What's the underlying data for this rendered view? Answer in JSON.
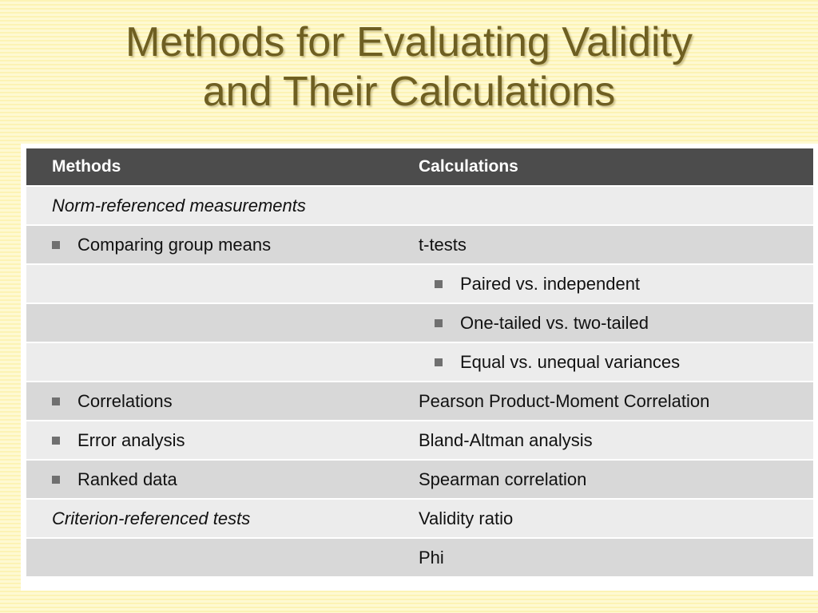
{
  "slide": {
    "title_line1": "Methods for Evaluating Validity",
    "title_line2": "and Their Calculations"
  },
  "table": {
    "headers": [
      "Methods",
      "Calculations"
    ],
    "rows": [
      {
        "method": "Norm-referenced measurements",
        "calculation": ""
      },
      {
        "method": "Comparing group means",
        "calculation": "t-tests"
      },
      {
        "method": "",
        "calculation": "Paired vs. independent"
      },
      {
        "method": "",
        "calculation": "One-tailed vs. two-tailed"
      },
      {
        "method": "",
        "calculation": "Equal vs. unequal variances"
      },
      {
        "method": "Correlations",
        "calculation": "Pearson Product-Moment Correlation"
      },
      {
        "method": "Error analysis",
        "calculation": "Bland-Altman analysis"
      },
      {
        "method": "Ranked data",
        "calculation": "Spearman correlation"
      },
      {
        "method": "Criterion-referenced tests",
        "calculation": "Validity ratio"
      },
      {
        "method": "",
        "calculation": "Phi"
      }
    ]
  },
  "colors": {
    "title": "#6e5f22",
    "header_bg": "#4c4c4c",
    "row_light": "#ececec",
    "row_dark": "#d8d8d8",
    "bullet": "#707070"
  }
}
